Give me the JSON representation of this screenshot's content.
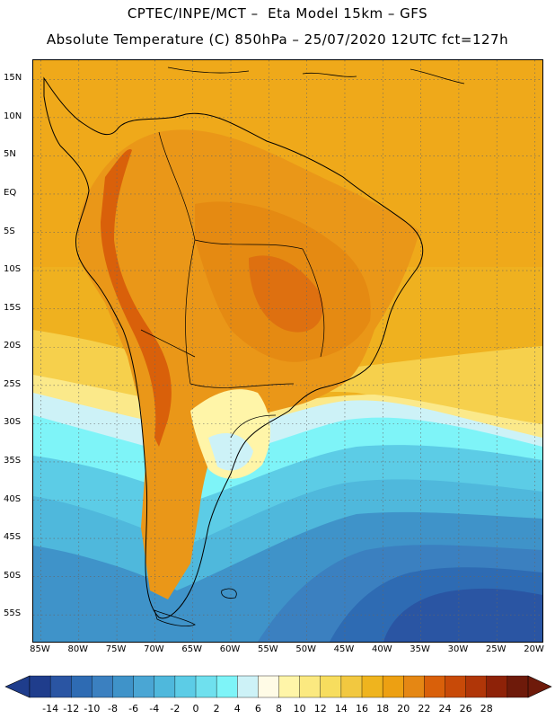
{
  "title": {
    "line1": "CPTEC/INPE/MCT –  Eta Model 15km – GFS",
    "line2": "Absolute Temperature (C) 850hPa – 25/07/2020 12UTC fct=127h"
  },
  "map": {
    "lat_labels": [
      "15N",
      "10N",
      "5N",
      "EQ",
      "5S",
      "10S",
      "15S",
      "20S",
      "25S",
      "30S",
      "35S",
      "40S",
      "45S",
      "50S",
      "55S"
    ],
    "lon_labels": [
      "85W",
      "80W",
      "75W",
      "70W",
      "65W",
      "60W",
      "55W",
      "50W",
      "45W",
      "40W",
      "35W",
      "30W",
      "25W",
      "20W"
    ],
    "lat_values": [
      15,
      10,
      5,
      0,
      -5,
      -10,
      -15,
      -20,
      -25,
      -30,
      -35,
      -40,
      -45,
      -50,
      -55
    ],
    "lon_values": [
      -85,
      -80,
      -75,
      -70,
      -65,
      -60,
      -55,
      -50,
      -45,
      -40,
      -35,
      -30,
      -25,
      -20
    ],
    "lon_range": [
      -86,
      -19
    ],
    "lat_range": [
      17.5,
      -58.5
    ]
  },
  "colorbar": {
    "labels": [
      "-14",
      "-12",
      "-10",
      "-8",
      "-6",
      "-4",
      "-2",
      "0",
      "2",
      "4",
      "6",
      "8",
      "10",
      "12",
      "14",
      "16",
      "18",
      "20",
      "22",
      "24",
      "26",
      "28"
    ],
    "colors": [
      "#1f3d8c",
      "#2a55a3",
      "#2e6bb3",
      "#3b80c0",
      "#3f93c9",
      "#4aa6d4",
      "#4fb8dc",
      "#5ccce6",
      "#6fe0ee",
      "#7ef4f8",
      "#cdf2f7",
      "#fffbe6",
      "#fff5a8",
      "#fbe980",
      "#f7dd5e",
      "#f2c840",
      "#efb41e",
      "#eda012",
      "#e58714",
      "#d9600a",
      "#c84a08",
      "#b03608",
      "#8e2208",
      "#6e1a0a"
    ],
    "unit": "C"
  },
  "colors": {
    "ocean_warm": "#efb11f",
    "land_hot": "#e58a12",
    "ocean_cold": "#2f6cb1"
  }
}
